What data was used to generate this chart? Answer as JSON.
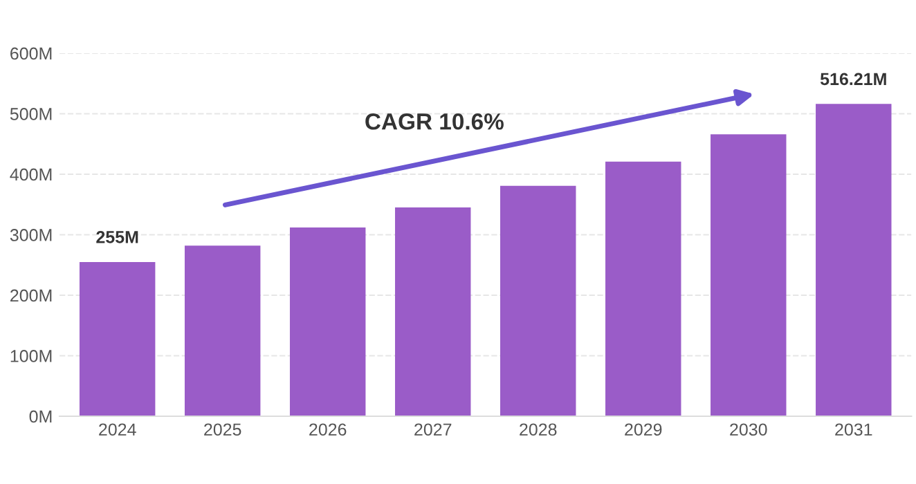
{
  "chart_data": {
    "type": "bar",
    "categories": [
      "2024",
      "2025",
      "2026",
      "2027",
      "2028",
      "2029",
      "2030",
      "2031"
    ],
    "values": [
      255,
      282,
      312,
      345,
      381,
      421,
      466,
      516.21
    ],
    "value_labels": [
      "255M",
      null,
      null,
      null,
      null,
      null,
      null,
      "516.21M"
    ],
    "color": "#9a5cc8",
    "ylim": [
      0,
      600
    ],
    "yticks": [
      {
        "value": 0,
        "label": "0M"
      },
      {
        "value": 100,
        "label": "100M"
      },
      {
        "value": 200,
        "label": "200M"
      },
      {
        "value": 300,
        "label": "300M"
      },
      {
        "value": 400,
        "label": "400M"
      },
      {
        "value": 500,
        "label": "500M"
      },
      {
        "value": 600,
        "label": "600M"
      }
    ],
    "grid": "y",
    "annotations": [
      "CAGR 10.6%"
    ]
  }
}
